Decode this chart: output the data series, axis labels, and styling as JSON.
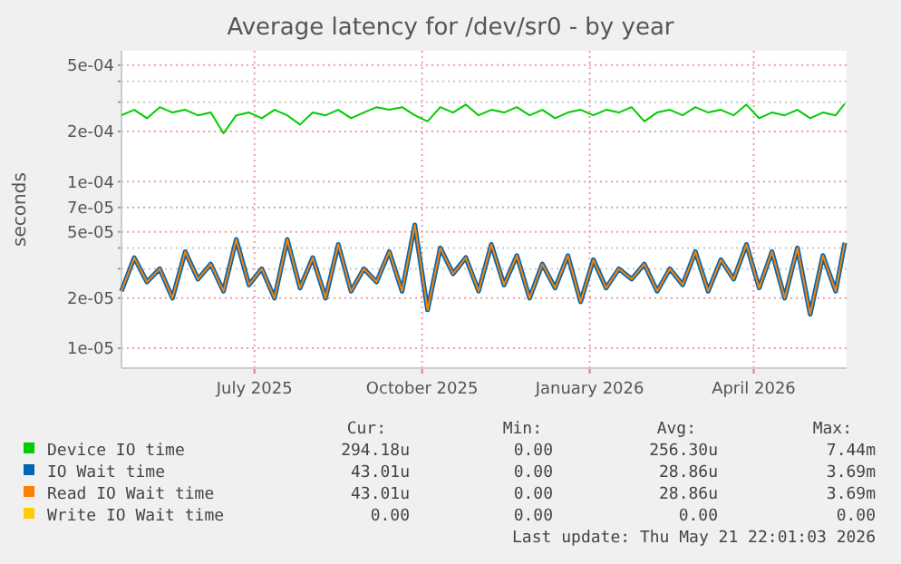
{
  "chart_data": {
    "type": "line",
    "title": "Average latency for /dev/sr0 - by year",
    "ylabel": "seconds",
    "log": "y",
    "grid": true,
    "legend": "bottom",
    "marker": "none",
    "line_style": "solid",
    "x": [
      "2025-04-19",
      "2025-04-26",
      "2025-05-03",
      "2025-05-10",
      "2025-05-17",
      "2025-05-24",
      "2025-05-31",
      "2025-06-07",
      "2025-06-14",
      "2025-06-21",
      "2025-06-28",
      "2025-07-05",
      "2025-07-12",
      "2025-07-19",
      "2025-07-26",
      "2025-08-02",
      "2025-08-09",
      "2025-08-16",
      "2025-08-23",
      "2025-08-30",
      "2025-09-06",
      "2025-09-13",
      "2025-09-20",
      "2025-09-27",
      "2025-10-04",
      "2025-10-11",
      "2025-10-18",
      "2025-10-25",
      "2025-11-01",
      "2025-11-08",
      "2025-11-15",
      "2025-11-22",
      "2025-11-29",
      "2025-12-06",
      "2025-12-13",
      "2025-12-20",
      "2025-12-27",
      "2026-01-03",
      "2026-01-10",
      "2026-01-17",
      "2026-01-24",
      "2026-01-31",
      "2026-02-07",
      "2026-02-14",
      "2026-02-21",
      "2026-02-28",
      "2026-03-07",
      "2026-03-14",
      "2026-03-21",
      "2026-03-28",
      "2026-04-04",
      "2026-04-11",
      "2026-04-18",
      "2026-04-25",
      "2026-05-02",
      "2026-05-09",
      "2026-05-16",
      "2026-05-21"
    ],
    "xlim": [
      "2025-04-19",
      "2026-05-22"
    ],
    "xticks": [
      {
        "value": "2025-07-01",
        "label": "July 2025"
      },
      {
        "value": "2025-10-01",
        "label": "October 2025"
      },
      {
        "value": "2026-01-01",
        "label": "January 2026"
      },
      {
        "value": "2026-04-01",
        "label": "April 2026"
      }
    ],
    "ylim": [
      7.6e-06,
      0.00061
    ],
    "yticks": [
      {
        "value": 1e-05,
        "label": "1e-05"
      },
      {
        "value": 2e-05,
        "label": "2e-05"
      },
      {
        "value": 3e-05,
        "label": null
      },
      {
        "value": 4e-05,
        "label": null
      },
      {
        "value": 5e-05,
        "label": "5e-05"
      },
      {
        "value": 7e-05,
        "label": "7e-05"
      },
      {
        "value": 0.0001,
        "label": "1e-04"
      },
      {
        "value": 0.0002,
        "label": "2e-04"
      },
      {
        "value": 0.0003,
        "label": null
      },
      {
        "value": 0.0004,
        "label": null
      },
      {
        "value": 0.0005,
        "label": "5e-04"
      }
    ],
    "series": [
      {
        "name": "Device IO time",
        "color": "#00cc00",
        "values": [
          0.00025,
          0.00027,
          0.00024,
          0.00028,
          0.00026,
          0.00027,
          0.00025,
          0.00026,
          0.000195,
          0.00025,
          0.00026,
          0.00024,
          0.00027,
          0.00025,
          0.00022,
          0.00026,
          0.00025,
          0.00027,
          0.00024,
          0.00026,
          0.00028,
          0.00027,
          0.00028,
          0.00025,
          0.00023,
          0.00028,
          0.00026,
          0.00029,
          0.00025,
          0.00027,
          0.00026,
          0.00028,
          0.00025,
          0.00027,
          0.00024,
          0.00026,
          0.00027,
          0.00025,
          0.00027,
          0.00026,
          0.00028,
          0.00023,
          0.00026,
          0.00027,
          0.00025,
          0.00028,
          0.00026,
          0.00027,
          0.00025,
          0.00029,
          0.00024,
          0.00026,
          0.00025,
          0.00027,
          0.00024,
          0.00026,
          0.00025,
          0.000294
        ]
      },
      {
        "name": "IO Wait time",
        "color": "#0066b3",
        "values": [
          2.2e-05,
          3.5e-05,
          2.5e-05,
          3e-05,
          2e-05,
          3.8e-05,
          2.6e-05,
          3.2e-05,
          2.2e-05,
          4.5e-05,
          2.4e-05,
          3e-05,
          2e-05,
          4.5e-05,
          2.3e-05,
          3.5e-05,
          2e-05,
          4.2e-05,
          2.2e-05,
          3e-05,
          2.5e-05,
          3.8e-05,
          2.2e-05,
          5.5e-05,
          1.7e-05,
          4e-05,
          2.8e-05,
          3.5e-05,
          2.2e-05,
          4.2e-05,
          2.4e-05,
          3.6e-05,
          2e-05,
          3.2e-05,
          2.3e-05,
          3.6e-05,
          1.9e-05,
          3.4e-05,
          2.3e-05,
          3e-05,
          2.6e-05,
          3.2e-05,
          2.2e-05,
          3e-05,
          2.4e-05,
          3.8e-05,
          2.2e-05,
          3.4e-05,
          2.6e-05,
          4.2e-05,
          2.3e-05,
          3.8e-05,
          2e-05,
          4e-05,
          1.6e-05,
          3.6e-05,
          2.2e-05,
          4.3e-05
        ]
      },
      {
        "name": "Read IO Wait time",
        "color": "#ff8000",
        "values": [
          2.2e-05,
          3.5e-05,
          2.5e-05,
          3e-05,
          2e-05,
          3.8e-05,
          2.6e-05,
          3.2e-05,
          2.2e-05,
          4.5e-05,
          2.4e-05,
          3e-05,
          2e-05,
          4.5e-05,
          2.3e-05,
          3.5e-05,
          2e-05,
          4.2e-05,
          2.2e-05,
          3e-05,
          2.5e-05,
          3.8e-05,
          2.2e-05,
          5.5e-05,
          1.7e-05,
          4e-05,
          2.8e-05,
          3.5e-05,
          2.2e-05,
          4.2e-05,
          2.4e-05,
          3.6e-05,
          2e-05,
          3.2e-05,
          2.3e-05,
          3.6e-05,
          1.9e-05,
          3.4e-05,
          2.3e-05,
          3e-05,
          2.6e-05,
          3.2e-05,
          2.2e-05,
          3e-05,
          2.4e-05,
          3.8e-05,
          2.2e-05,
          3.4e-05,
          2.6e-05,
          4.2e-05,
          2.3e-05,
          3.8e-05,
          2e-05,
          4e-05,
          1.6e-05,
          3.6e-05,
          2.2e-05,
          4.3e-05
        ]
      },
      {
        "name": "Write IO Wait time",
        "color": "#ffcc00",
        "values": [
          null,
          null,
          null,
          null,
          null,
          null,
          null,
          null,
          null,
          null,
          null,
          null,
          null,
          null,
          null,
          null,
          null,
          null,
          null,
          null,
          null,
          null,
          null,
          null,
          null,
          null,
          null,
          null,
          null,
          null,
          null,
          null,
          null,
          null,
          null,
          null,
          null,
          null,
          null,
          null,
          null,
          null,
          null,
          null,
          null,
          null,
          null,
          null,
          null,
          null,
          null,
          null,
          null,
          null,
          null,
          null,
          null,
          null
        ]
      }
    ],
    "annotations": [
      "Cur:",
      "Min:",
      "Avg:",
      "Max:",
      "294.18u",
      "0.00",
      "256.30u",
      "7.44m",
      "43.01u",
      "0.00",
      "28.86u",
      "3.69m",
      "43.01u",
      "0.00",
      "28.86u",
      "3.69m",
      "0.00",
      "0.00",
      "0.00",
      "0.00",
      "Last update: Thu May 21 22:01:03 2026"
    ]
  }
}
